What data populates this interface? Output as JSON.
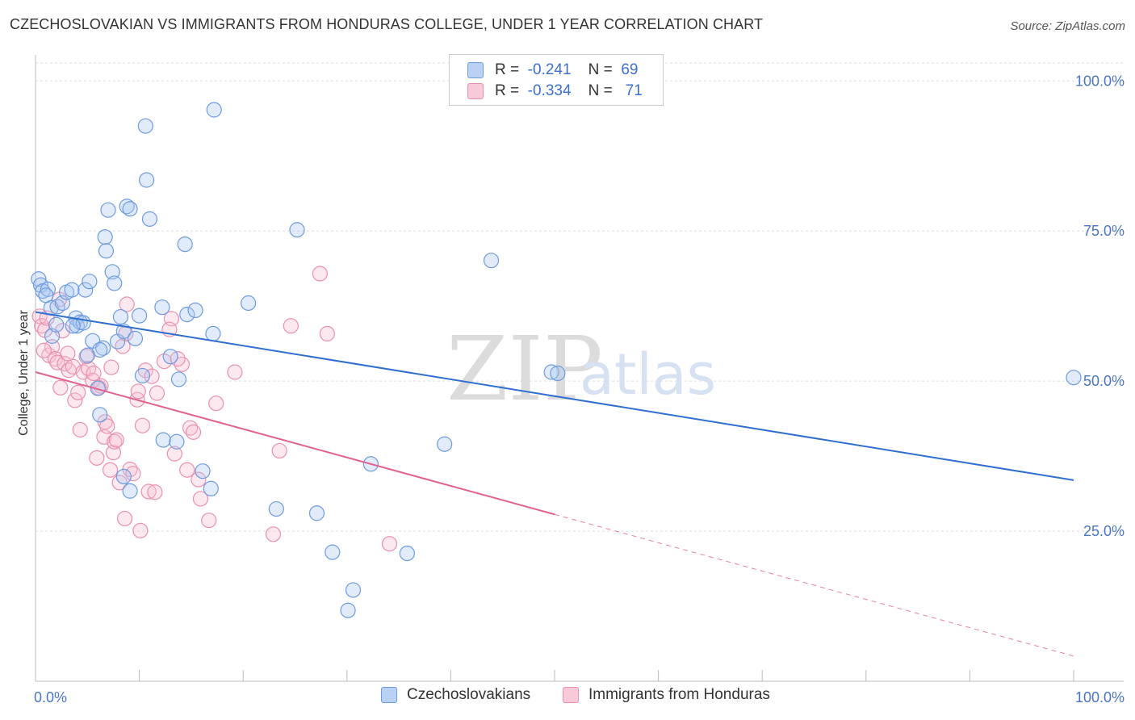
{
  "title": "CZECHOSLOVAKIAN VS IMMIGRANTS FROM HONDURAS COLLEGE, UNDER 1 YEAR CORRELATION CHART",
  "source": "Source: ZipAtlas.com",
  "watermark": {
    "zip": "ZIP",
    "atlas": "atlas"
  },
  "legend": {
    "rows": [
      {
        "r_label": "R =",
        "r_value": "-0.241",
        "n_label": "N =",
        "n_value": "69"
      },
      {
        "r_label": "R =",
        "r_value": "-0.334",
        "n_label": "N =",
        "n_value": "71"
      }
    ]
  },
  "chart_data": {
    "type": "scatter",
    "title": "CZECHOSLOVAKIAN VS IMMIGRANTS FROM HONDURAS COLLEGE, UNDER 1 YEAR CORRELATION CHART",
    "xlabel": "",
    "ylabel": "College, Under 1 year",
    "xlim": [
      0,
      100
    ],
    "ylim": [
      0,
      103
    ],
    "x_tick_labels": [
      "0.0%",
      "100.0%"
    ],
    "y_ticks": [
      25,
      50,
      75,
      100
    ],
    "y_tick_labels": [
      "25.0%",
      "50.0%",
      "75.0%",
      "100.0%"
    ],
    "colors": {
      "blue_fill": "#a9c7f0",
      "blue_stroke": "#6d9be0",
      "blue_line": "#2f6fd0",
      "pink_fill": "#f6bfd1",
      "pink_stroke": "#ec8fae",
      "pink_line": "#e06090"
    },
    "series": [
      {
        "name": "Czechoslovakians",
        "r": -0.241,
        "n": 69,
        "trend": {
          "x0": 0,
          "y0": 61.5,
          "x1": 100,
          "y1": 33.5
        },
        "points": [
          [
            0.3,
            67
          ],
          [
            0.5,
            66
          ],
          [
            0.7,
            65
          ],
          [
            1.2,
            65.3
          ],
          [
            1.5,
            62.2
          ],
          [
            1.6,
            57.5
          ],
          [
            2.1,
            62.4
          ],
          [
            2.6,
            63
          ],
          [
            3,
            64.8
          ],
          [
            3.5,
            65.2
          ],
          [
            3.9,
            60.5
          ],
          [
            4,
            59.2
          ],
          [
            4.3,
            59.8
          ],
          [
            4.6,
            59.7
          ],
          [
            4.8,
            65.2
          ],
          [
            5.2,
            66.6
          ],
          [
            5.5,
            56.7
          ],
          [
            6,
            48.8
          ],
          [
            6.2,
            44.4
          ],
          [
            6.5,
            55.5
          ],
          [
            6.7,
            74
          ],
          [
            6.8,
            71.7
          ],
          [
            7,
            78.5
          ],
          [
            7.4,
            68.2
          ],
          [
            7.6,
            66.3
          ],
          [
            7.9,
            56.6
          ],
          [
            8.2,
            60.7
          ],
          [
            8.5,
            58.3
          ],
          [
            8.8,
            79.1
          ],
          [
            9.1,
            78.7
          ],
          [
            9.6,
            57.1
          ],
          [
            10,
            60.9
          ],
          [
            10.6,
            92.5
          ],
          [
            10.7,
            83.5
          ],
          [
            11,
            77
          ],
          [
            12.2,
            62.3
          ],
          [
            12.3,
            40.2
          ],
          [
            13,
            54.1
          ],
          [
            13.6,
            39.9
          ],
          [
            13.8,
            50.3
          ],
          [
            14.4,
            72.8
          ],
          [
            14.6,
            61.1
          ],
          [
            15.4,
            61.8
          ],
          [
            16.1,
            35
          ],
          [
            16.9,
            32.1
          ],
          [
            17.1,
            57.9
          ],
          [
            17.2,
            95.2
          ],
          [
            20.5,
            63
          ],
          [
            23.2,
            28.7
          ],
          [
            25.2,
            75.2
          ],
          [
            27.1,
            28
          ],
          [
            28.6,
            21.5
          ],
          [
            30.1,
            11.8
          ],
          [
            30.6,
            15.2
          ],
          [
            32.3,
            36.2
          ],
          [
            35.8,
            21.3
          ],
          [
            39.4,
            39.5
          ],
          [
            43.9,
            70.1
          ],
          [
            49.7,
            51.5
          ],
          [
            50.3,
            51.3
          ],
          [
            100,
            50.6
          ],
          [
            8.5,
            34.1
          ],
          [
            9.1,
            31.7
          ],
          [
            10.3,
            50.9
          ],
          [
            2,
            59.4
          ],
          [
            3.6,
            59.2
          ],
          [
            1,
            64.3
          ],
          [
            6.2,
            55.2
          ],
          [
            5,
            54.3
          ]
        ]
      },
      {
        "name": "Immigrants from Honduras",
        "r": -0.334,
        "n": 71,
        "trend": {
          "x0": 0,
          "y0": 51.5,
          "x1": 50,
          "y1": 27.8
        },
        "trend_dashed": {
          "x0": 50,
          "y0": 27.8,
          "x1": 100,
          "y1": 4.2
        },
        "points": [
          [
            0.4,
            60.8
          ],
          [
            0.6,
            59.2
          ],
          [
            0.9,
            58.5
          ],
          [
            1.3,
            54.3
          ],
          [
            1.6,
            55.7
          ],
          [
            1.9,
            53.7
          ],
          [
            2.1,
            53.1
          ],
          [
            2.4,
            48.9
          ],
          [
            2.6,
            58.4
          ],
          [
            2.8,
            52.9
          ],
          [
            3.2,
            51.8
          ],
          [
            3.6,
            52.4
          ],
          [
            3.8,
            46.8
          ],
          [
            4.1,
            48.1
          ],
          [
            4.3,
            41.9
          ],
          [
            4.6,
            51.5
          ],
          [
            5.1,
            52.1
          ],
          [
            5.5,
            50.1
          ],
          [
            5.9,
            37.2
          ],
          [
            6.3,
            49.2
          ],
          [
            6.6,
            40.7
          ],
          [
            6.7,
            43.2
          ],
          [
            6.9,
            42.5
          ],
          [
            7.2,
            35.2
          ],
          [
            7.5,
            38.1
          ],
          [
            7.6,
            39.9
          ],
          [
            7.8,
            40.2
          ],
          [
            8.1,
            33.1
          ],
          [
            8.4,
            55.8
          ],
          [
            8.6,
            27.1
          ],
          [
            8.8,
            62.8
          ],
          [
            9.1,
            35.3
          ],
          [
            9.4,
            34.6
          ],
          [
            9.8,
            46.9
          ],
          [
            10.1,
            25.1
          ],
          [
            10.3,
            42.6
          ],
          [
            10.6,
            51.8
          ],
          [
            10.9,
            31.6
          ],
          [
            11.2,
            50.8
          ],
          [
            11.7,
            48
          ],
          [
            12.4,
            53.3
          ],
          [
            13.1,
            60.4
          ],
          [
            13.4,
            37.9
          ],
          [
            14.1,
            52.8
          ],
          [
            14.6,
            35.2
          ],
          [
            14.9,
            42.2
          ],
          [
            15.2,
            41.5
          ],
          [
            15.7,
            33.6
          ],
          [
            16.7,
            26.8
          ],
          [
            17.4,
            46.3
          ],
          [
            19.2,
            51.5
          ],
          [
            22.9,
            24.5
          ],
          [
            23.5,
            38.4
          ],
          [
            24.6,
            59.2
          ],
          [
            27.4,
            67.9
          ],
          [
            28.1,
            57.9
          ],
          [
            34.1,
            22.9
          ],
          [
            5.6,
            51.3
          ],
          [
            6.1,
            48.9
          ],
          [
            12.9,
            58.6
          ],
          [
            1.1,
            60.5
          ],
          [
            3.1,
            54.6
          ],
          [
            4.9,
            54.1
          ],
          [
            0.8,
            55.1
          ],
          [
            9.9,
            48.3
          ],
          [
            11.5,
            31.5
          ],
          [
            13.7,
            53.7
          ],
          [
            7.3,
            52.3
          ],
          [
            15.9,
            30.4
          ],
          [
            2.3,
            63.6
          ],
          [
            8.7,
            57.9
          ]
        ]
      }
    ]
  }
}
